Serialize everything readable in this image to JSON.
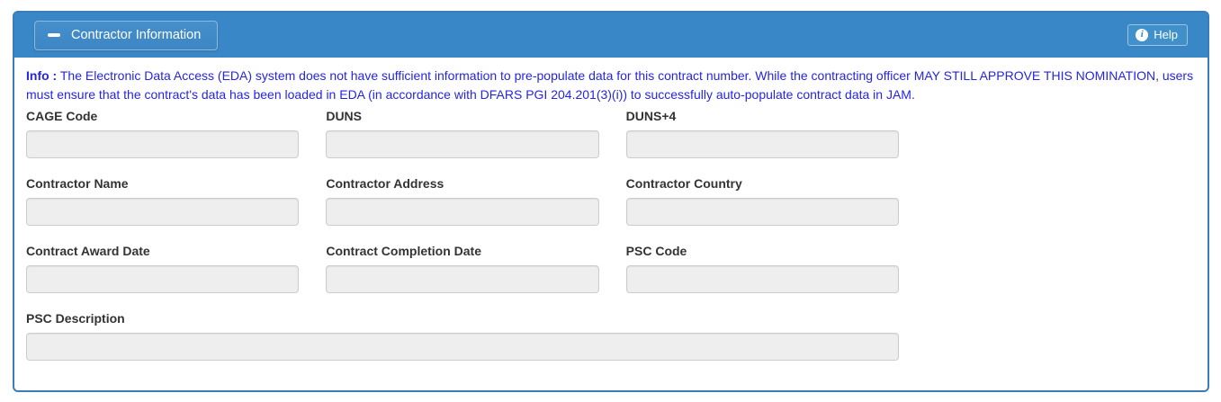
{
  "panel": {
    "title": "Contractor Information",
    "help_label": "Help",
    "info_icon_glyph": "i"
  },
  "info": {
    "prefix": "Info :",
    "message": " The Electronic Data Access (EDA) system does not have sufficient information to pre-populate data for this contract number. While the contracting officer MAY STILL APPROVE THIS NOMINATION, users must ensure that the contract's data has been loaded in EDA (in accordance with DFARS PGI 204.201(3)(i)) to successfully auto-populate contract data in JAM."
  },
  "form": {
    "fields": [
      {
        "label": "CAGE Code",
        "value": ""
      },
      {
        "label": "DUNS",
        "value": ""
      },
      {
        "label": "DUNS+4",
        "value": ""
      },
      {
        "label": "Contractor Name",
        "value": ""
      },
      {
        "label": "Contractor Address",
        "value": ""
      },
      {
        "label": "Contractor Country",
        "value": ""
      },
      {
        "label": "Contract Award Date",
        "value": ""
      },
      {
        "label": "Contract Completion Date",
        "value": ""
      },
      {
        "label": "PSC Code",
        "value": ""
      },
      {
        "label": "PSC Description",
        "value": ""
      }
    ]
  },
  "colors": {
    "header_blue": "#3a87c8",
    "panel_border": "#3b7cba",
    "info_text_blue": "#2525e2",
    "label_text": "#333333",
    "input_bg": "#eeeeee",
    "input_border": "#cccccc"
  }
}
